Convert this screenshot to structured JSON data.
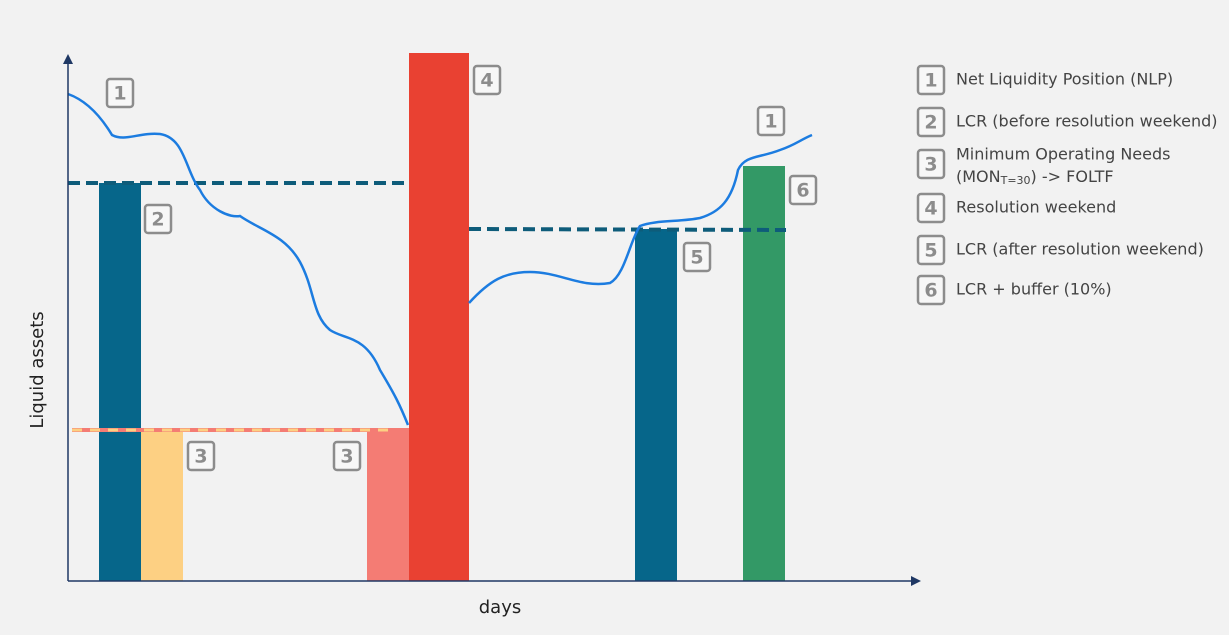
{
  "axes": {
    "y_label": "Liquid assets",
    "x_label": "days"
  },
  "badges": [
    "1",
    "2",
    "3",
    "3",
    "4",
    "1",
    "5",
    "6"
  ],
  "legend": [
    {
      "badge": "1",
      "text": "Net Liquidity Position (NLP)"
    },
    {
      "badge": "2",
      "text": "LCR (before resolution weekend)"
    },
    {
      "badge": "3",
      "text": "Minimum Operating Needs",
      "text2": "(MON",
      "sub": "T=30",
      "text3": ") -> FOLTF"
    },
    {
      "badge": "4",
      "text": "Resolution weekend"
    },
    {
      "badge": "5",
      "text": "LCR (after resolution weekend)"
    },
    {
      "badge": "6",
      "text": "LCR + buffer (10%)"
    }
  ]
}
